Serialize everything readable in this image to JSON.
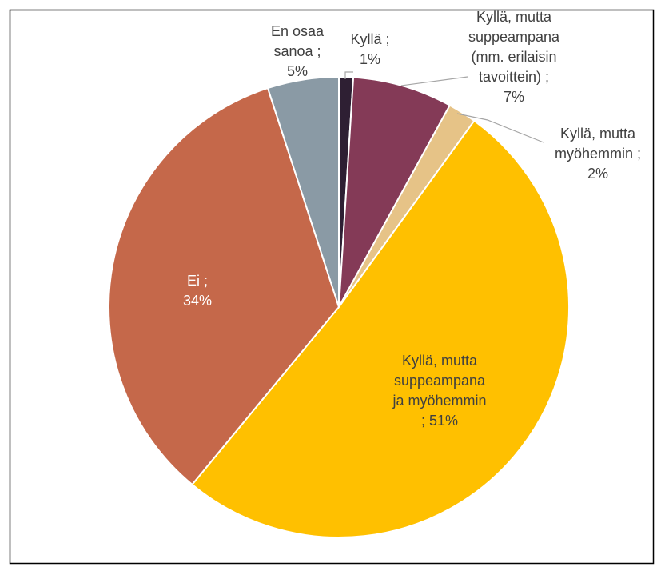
{
  "chart_data": {
    "type": "pie",
    "values": [
      1,
      7,
      2,
      51,
      34,
      5
    ],
    "value_labels": [
      [
        "Kyllä ;",
        "1%"
      ],
      [
        "Kyllä, mutta",
        "suppeampana",
        "(mm. erilaisin",
        "tavoittein) ;",
        "7%"
      ],
      [
        "Kyllä, mutta",
        "myöhemmin ;",
        "2%"
      ],
      [
        "Kyllä, mutta",
        "suppeampana",
        "ja myöhemmin",
        "; 51%"
      ],
      [
        "Ei ;",
        "34%"
      ],
      [
        "En osaa",
        "sanoa ;",
        "5%"
      ]
    ],
    "colors": [
      "#2e1f33",
      "#843a57",
      "#e6c387",
      "#ffc000",
      "#c5684a",
      "#8a9aa5"
    ]
  }
}
